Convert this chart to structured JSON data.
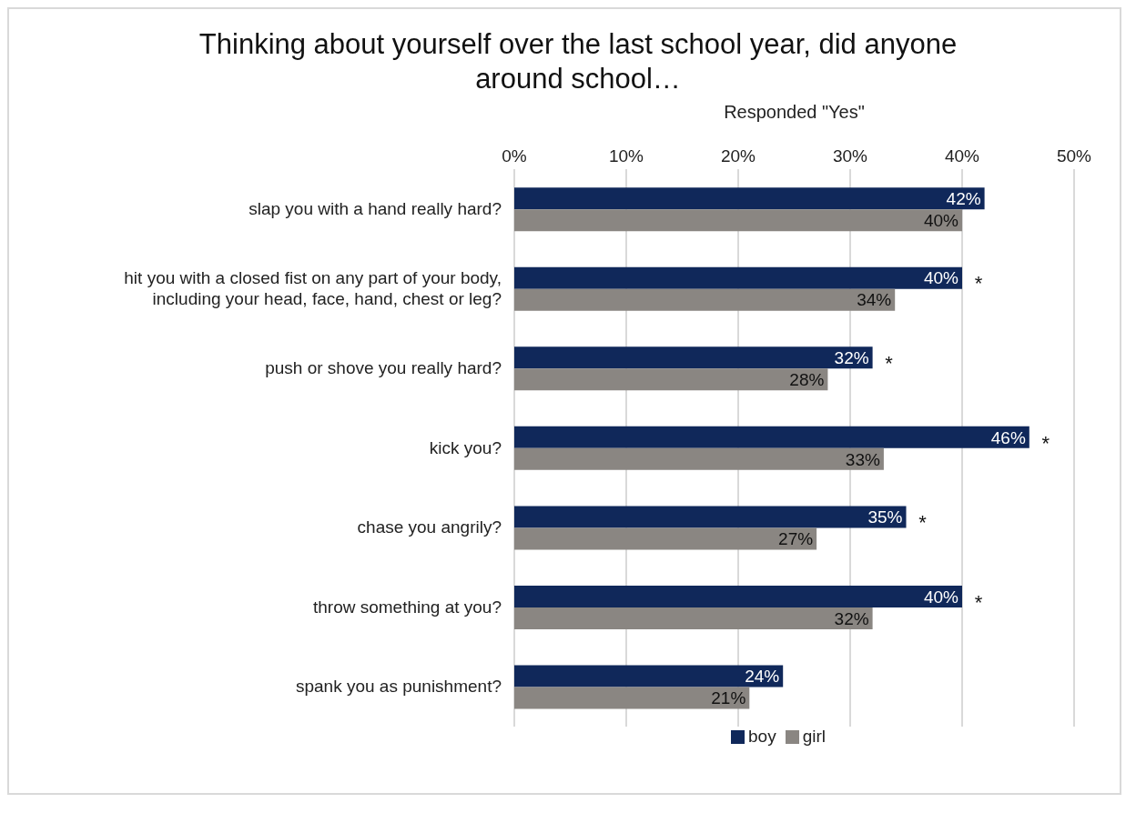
{
  "chart_data": {
    "type": "bar",
    "orientation": "horizontal",
    "title": "Thinking about yourself over the last school year, did anyone around school…",
    "xlabel": "Responded \"Yes\"",
    "categories": [
      "slap you with a hand really hard?",
      "hit you with a closed fist on any part of your body, including your head, face, hand, chest or leg?",
      "push or shove you really hard?",
      "kick you?",
      "chase you angrily?",
      "throw something at you?",
      "spank you as punishment?"
    ],
    "series": [
      {
        "name": "boy",
        "color": "#10285a",
        "values": [
          42,
          40,
          32,
          46,
          35,
          40,
          24
        ],
        "value_labels": [
          "42%",
          "40%",
          "32%",
          "46%",
          "35%",
          "40%",
          "24%"
        ]
      },
      {
        "name": "girl",
        "color": "#8a8682",
        "values": [
          40,
          34,
          28,
          33,
          27,
          32,
          21
        ],
        "value_labels": [
          "40%",
          "34%",
          "28%",
          "33%",
          "27%",
          "32%",
          "21%"
        ]
      }
    ],
    "xlim": [
      0,
      50
    ],
    "xticks": [
      {
        "value": 0,
        "label": "0%"
      },
      {
        "value": 10,
        "label": "10%"
      },
      {
        "value": 20,
        "label": "20%"
      },
      {
        "value": 30,
        "label": "30%"
      },
      {
        "value": 40,
        "label": "40%"
      },
      {
        "value": 50,
        "label": "50%"
      }
    ],
    "annotations": [
      {
        "text": "*",
        "x": 40,
        "y": "hit you with a closed fist on any part of your body, including your head, face, hand, chest or leg?"
      },
      {
        "text": "*",
        "x": 32,
        "y": "push or shove you really hard?"
      },
      {
        "text": "*",
        "x": 46,
        "y": "kick you?"
      },
      {
        "text": "*",
        "x": 35,
        "y": "chase you angrily?"
      },
      {
        "text": "*",
        "x": 40,
        "y": "throw something at you?"
      }
    ],
    "grid": "x",
    "legend": "bottom"
  }
}
